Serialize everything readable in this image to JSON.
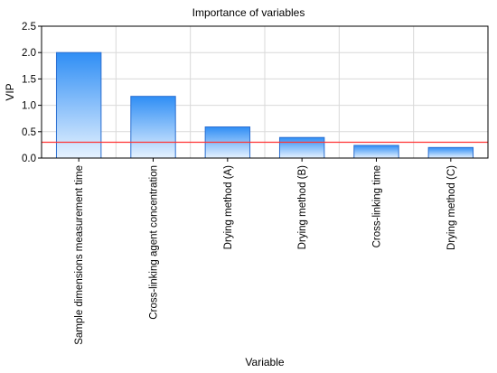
{
  "chart_data": {
    "type": "bar",
    "title": "Importance of variables",
    "xlabel": "Variable",
    "ylabel": "VIP",
    "categories": [
      "Sample dimensions measurement time",
      "Cross-linking agent concentration",
      "Drying method (A)",
      "Drying method (B)",
      "Cross-linking time",
      "Drying method (C)"
    ],
    "values": [
      2.0,
      1.17,
      0.59,
      0.39,
      0.24,
      0.2
    ],
    "ylim": [
      0,
      2.5
    ],
    "yticks": [
      "0.0",
      "0.5",
      "1.0",
      "1.5",
      "2.0",
      "2.5"
    ],
    "threshold": 0.3,
    "grid": true,
    "colors": {
      "bar_top": "#2f8ef5",
      "bar_bottom": "#e6f2ff",
      "bar_edge": "#2b6fd0",
      "threshold_line": "#ff3333",
      "grid": "#d9d9d9"
    }
  }
}
